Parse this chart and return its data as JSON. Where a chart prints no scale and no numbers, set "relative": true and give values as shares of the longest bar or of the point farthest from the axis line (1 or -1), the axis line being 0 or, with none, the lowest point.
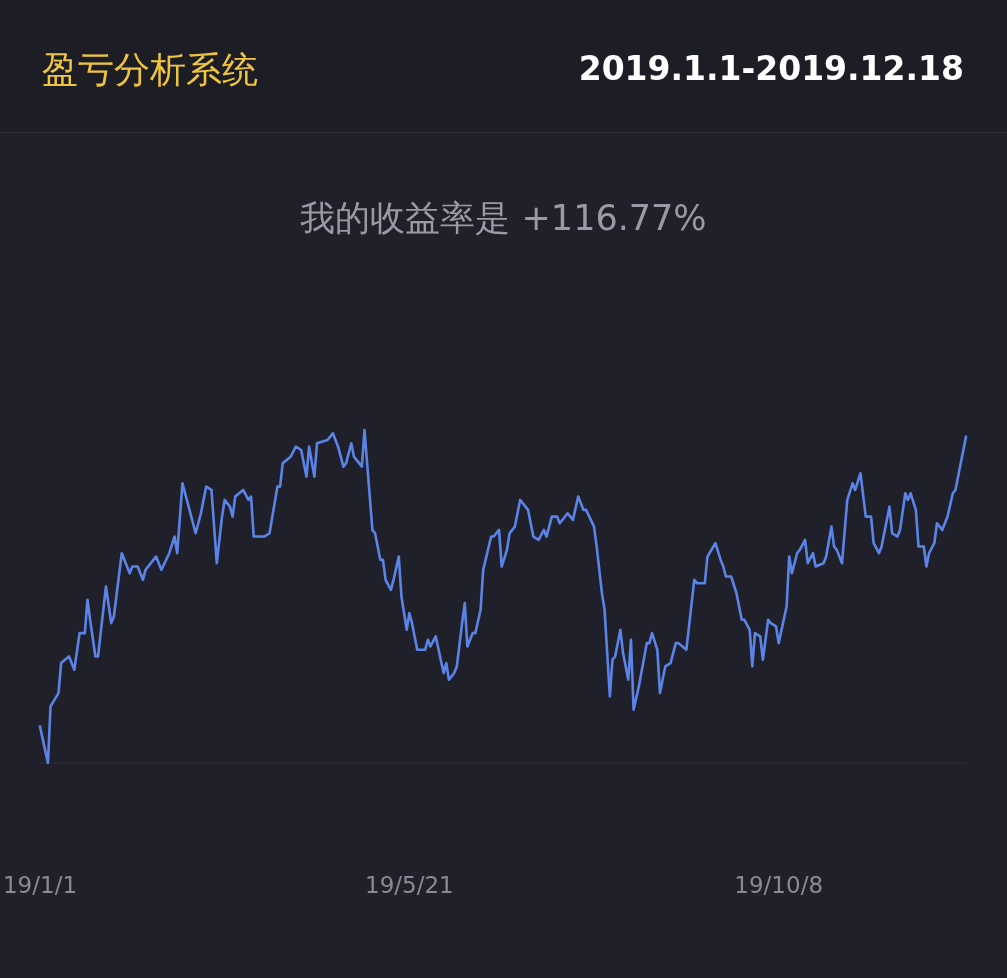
{
  "chart_data": {
    "type": "line",
    "title": "盈亏分析系统",
    "subtitle": "2019.1.1-2019.12.18",
    "annotations": [
      "我的收益率是 +116.77%"
    ],
    "relative": true,
    "grid": false,
    "marker": "none",
    "line_style": "solid",
    "xlim": [
      "2019-01-01",
      "2019-12-18"
    ],
    "xticks": [
      {
        "value": "2019-01-01",
        "label": "19/1/1"
      },
      {
        "value": "2019-05-21",
        "label": "19/5/21"
      },
      {
        "value": "2019-10-08",
        "label": "19/10/8"
      }
    ],
    "x": [
      "2019-01-01",
      "2019-01-04",
      "2019-01-05",
      "2019-01-08",
      "2019-01-09",
      "2019-01-12",
      "2019-01-14",
      "2019-01-16",
      "2019-01-18",
      "2019-01-19",
      "2019-01-20",
      "2019-01-22",
      "2019-01-23",
      "2019-01-26",
      "2019-01-28",
      "2019-01-29",
      "2019-02-01",
      "2019-02-04",
      "2019-02-05",
      "2019-02-07",
      "2019-02-09",
      "2019-02-10",
      "2019-02-14",
      "2019-02-16",
      "2019-02-19",
      "2019-02-21",
      "2019-02-22",
      "2019-02-24",
      "2019-02-27",
      "2019-03-01",
      "2019-03-03",
      "2019-03-05",
      "2019-03-07",
      "2019-03-09",
      "2019-03-11",
      "2019-03-12",
      "2019-03-14",
      "2019-03-15",
      "2019-03-16",
      "2019-03-19",
      "2019-03-21",
      "2019-03-22",
      "2019-03-23",
      "2019-03-27",
      "2019-03-29",
      "2019-04-01",
      "2019-04-02",
      "2019-04-03",
      "2019-04-06",
      "2019-04-08",
      "2019-04-10",
      "2019-04-12",
      "2019-04-13",
      "2019-04-15",
      "2019-04-16",
      "2019-04-20",
      "2019-04-22",
      "2019-04-24",
      "2019-04-26",
      "2019-04-27",
      "2019-04-29",
      "2019-04-30",
      "2019-05-03",
      "2019-05-04",
      "2019-05-07",
      "2019-05-08",
      "2019-05-10",
      "2019-05-11",
      "2019-05-12",
      "2019-05-14",
      "2019-05-15",
      "2019-05-17",
      "2019-05-18",
      "2019-05-20",
      "2019-05-21",
      "2019-05-22",
      "2019-05-24",
      "2019-05-27",
      "2019-05-28",
      "2019-05-29",
      "2019-05-31",
      "2019-06-03",
      "2019-06-04",
      "2019-06-05",
      "2019-06-07",
      "2019-06-08",
      "2019-06-10",
      "2019-06-11",
      "2019-06-12",
      "2019-06-14",
      "2019-06-15",
      "2019-06-17",
      "2019-06-18",
      "2019-06-21",
      "2019-06-22",
      "2019-06-24",
      "2019-06-25",
      "2019-06-27",
      "2019-06-28",
      "2019-06-30",
      "2019-07-02",
      "2019-07-03",
      "2019-07-05",
      "2019-07-07",
      "2019-07-09",
      "2019-07-11",
      "2019-07-12",
      "2019-07-14",
      "2019-07-16",
      "2019-07-17",
      "2019-07-20",
      "2019-07-22",
      "2019-07-24",
      "2019-07-26",
      "2019-07-27",
      "2019-07-30",
      "2019-07-31",
      "2019-08-02",
      "2019-08-03",
      "2019-08-05",
      "2019-08-06",
      "2019-08-07",
      "2019-08-09",
      "2019-08-10",
      "2019-08-12",
      "2019-08-13",
      "2019-08-14",
      "2019-08-16",
      "2019-08-19",
      "2019-08-20",
      "2019-08-21",
      "2019-08-23",
      "2019-08-24",
      "2019-08-26",
      "2019-08-28",
      "2019-08-30",
      "2019-08-31",
      "2019-09-03",
      "2019-09-06",
      "2019-09-07",
      "2019-09-09",
      "2019-09-10",
      "2019-09-11",
      "2019-09-14",
      "2019-09-16",
      "2019-09-17",
      "2019-09-18",
      "2019-09-20",
      "2019-09-22",
      "2019-09-24",
      "2019-09-25",
      "2019-09-27",
      "2019-09-28",
      "2019-09-29",
      "2019-10-01",
      "2019-10-02",
      "2019-10-04",
      "2019-10-05",
      "2019-10-07",
      "2019-10-08",
      "2019-10-11",
      "2019-10-12",
      "2019-10-13",
      "2019-10-15",
      "2019-10-16",
      "2019-10-18",
      "2019-10-19",
      "2019-10-21",
      "2019-10-22",
      "2019-10-25",
      "2019-10-26",
      "2019-10-28",
      "2019-10-29",
      "2019-10-30",
      "2019-11-01",
      "2019-11-03",
      "2019-11-05",
      "2019-11-06",
      "2019-11-08",
      "2019-11-10",
      "2019-11-12",
      "2019-11-13",
      "2019-11-15",
      "2019-11-16",
      "2019-11-19",
      "2019-11-20",
      "2019-11-22",
      "2019-11-23",
      "2019-11-25",
      "2019-11-26",
      "2019-11-27",
      "2019-11-29",
      "2019-11-30",
      "2019-12-02",
      "2019-12-03",
      "2019-12-04",
      "2019-12-06",
      "2019-12-07",
      "2019-12-09",
      "2019-12-10",
      "2019-12-11",
      "2019-12-13",
      "2019-12-14",
      "2019-12-18"
    ],
    "series": [
      {
        "color": "#5b84e8",
        "values": [
          0.11,
          0.0,
          0.17,
          0.21,
          0.3,
          0.32,
          0.28,
          0.39,
          0.39,
          0.49,
          0.43,
          0.32,
          0.32,
          0.53,
          0.42,
          0.44,
          0.63,
          0.57,
          0.59,
          0.59,
          0.55,
          0.58,
          0.62,
          0.58,
          0.63,
          0.68,
          0.63,
          0.84,
          0.75,
          0.69,
          0.75,
          0.83,
          0.82,
          0.6,
          0.74,
          0.79,
          0.77,
          0.74,
          0.8,
          0.82,
          0.79,
          0.8,
          0.68,
          0.68,
          0.69,
          0.83,
          0.83,
          0.9,
          0.92,
          0.95,
          0.94,
          0.86,
          0.95,
          0.86,
          0.96,
          0.97,
          0.99,
          0.95,
          0.89,
          0.9,
          0.96,
          0.92,
          0.89,
          1.0,
          0.7,
          0.69,
          0.61,
          0.61,
          0.55,
          0.52,
          0.55,
          0.62,
          0.5,
          0.4,
          0.45,
          0.42,
          0.34,
          0.34,
          0.37,
          0.35,
          0.38,
          0.27,
          0.3,
          0.25,
          0.27,
          0.29,
          0.42,
          0.48,
          0.35,
          0.39,
          0.39,
          0.46,
          0.58,
          0.68,
          0.68,
          0.7,
          0.59,
          0.64,
          0.69,
          0.71,
          0.79,
          0.78,
          0.76,
          0.68,
          0.67,
          0.7,
          0.68,
          0.74,
          0.74,
          0.72,
          0.75,
          0.73,
          0.8,
          0.76,
          0.76,
          0.71,
          0.65,
          0.51,
          0.46,
          0.2,
          0.31,
          0.32,
          0.4,
          0.33,
          0.25,
          0.37,
          0.16,
          0.23,
          0.36,
          0.36,
          0.39,
          0.34,
          0.21,
          0.29,
          0.3,
          0.36,
          0.36,
          0.34,
          0.55,
          0.54,
          0.54,
          0.54,
          0.62,
          0.66,
          0.61,
          0.59,
          0.56,
          0.56,
          0.51,
          0.43,
          0.43,
          0.4,
          0.29,
          0.39,
          0.38,
          0.31,
          0.43,
          0.42,
          0.41,
          0.36,
          0.47,
          0.62,
          0.57,
          0.63,
          0.64,
          0.67,
          0.6,
          0.63,
          0.59,
          0.6,
          0.62,
          0.71,
          0.65,
          0.64,
          0.6,
          0.79,
          0.84,
          0.82,
          0.87,
          0.74,
          0.74,
          0.66,
          0.63,
          0.65,
          0.77,
          0.69,
          0.68,
          0.7,
          0.81,
          0.79,
          0.81,
          0.76,
          0.65,
          0.65,
          0.59,
          0.63,
          0.66,
          0.72,
          0.7,
          0.72,
          0.74,
          0.81,
          0.82,
          0.98
        ]
      }
    ]
  }
}
